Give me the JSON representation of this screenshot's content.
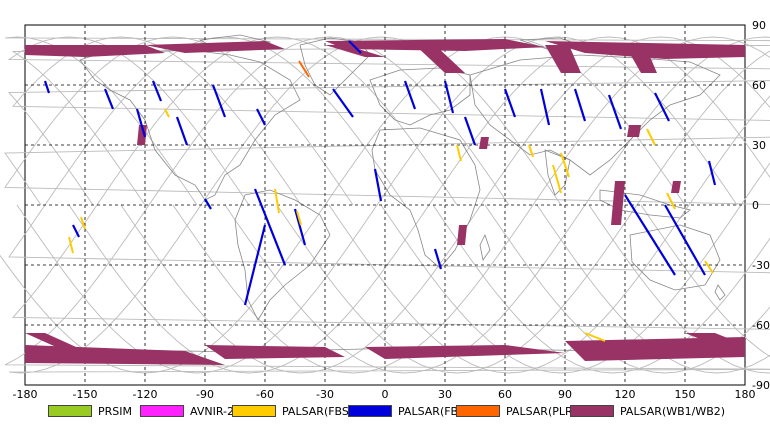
{
  "map": {
    "lon_ticks": [
      "-180",
      "-150",
      "-120",
      "-90",
      "-60",
      "-30",
      "0",
      "30",
      "60",
      "90",
      "120",
      "150",
      "180"
    ],
    "lat_ticks": [
      "90",
      "60",
      "30",
      "0",
      "-30",
      "-60",
      "-90"
    ]
  },
  "legend": [
    {
      "label": "PRSIM",
      "color": "#99cc22"
    },
    {
      "label": "AVNIR-2",
      "color": "#ff22ff"
    },
    {
      "label": "PALSAR(FBS)",
      "color": "#ffcc00"
    },
    {
      "label": "PALSAR(FBD)",
      "color": "#0000dd"
    },
    {
      "label": "PALSAR(PLR)",
      "color": "#ff6600"
    },
    {
      "label": "PALSAR(WB1/WB2)",
      "color": "#993366"
    }
  ]
}
